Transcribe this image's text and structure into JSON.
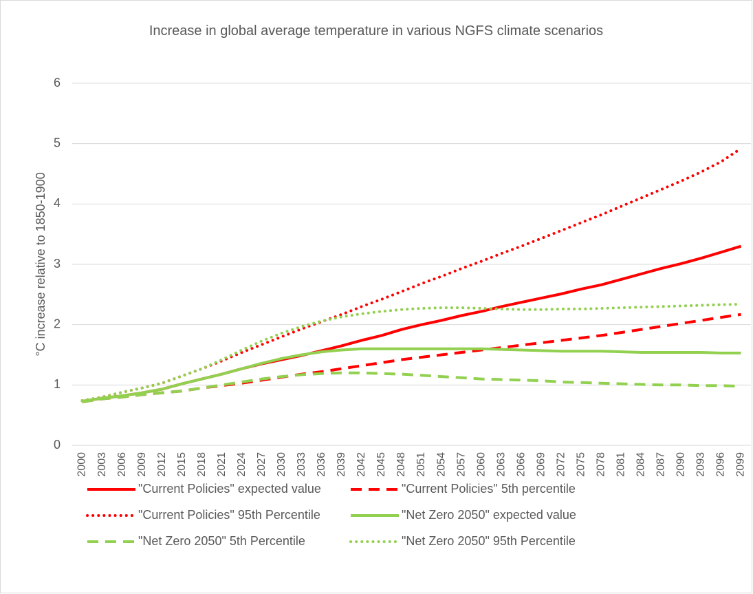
{
  "chart_data": {
    "type": "line",
    "title": "Increase in global average temperature in various NGFS climate scenarios",
    "y_label": "°C increase relative to 1850-1900",
    "categories": [
      "2000",
      "2003",
      "2006",
      "2009",
      "2012",
      "2015",
      "2018",
      "2021",
      "2024",
      "2027",
      "2030",
      "2033",
      "2036",
      "2039",
      "2042",
      "2045",
      "2048",
      "2051",
      "2054",
      "2057",
      "2060",
      "2063",
      "2066",
      "2069",
      "2072",
      "2075",
      "2078",
      "2081",
      "2084",
      "2087",
      "2090",
      "2093",
      "2096",
      "2099"
    ],
    "ylim": [
      0,
      6
    ],
    "yticks": [
      0,
      1,
      2,
      3,
      4,
      5,
      6
    ],
    "grid": true,
    "legend": "bottom",
    "series": [
      {
        "name": "\"Current Policies\" expected value",
        "color": "#ff0000",
        "style": "solid",
        "values": [
          0.73,
          0.78,
          0.82,
          0.87,
          0.93,
          1.02,
          1.1,
          1.18,
          1.27,
          1.35,
          1.42,
          1.49,
          1.57,
          1.65,
          1.74,
          1.82,
          1.92,
          2.0,
          2.07,
          2.15,
          2.22,
          2.3,
          2.37,
          2.44,
          2.51,
          2.59,
          2.66,
          2.75,
          2.84,
          2.93,
          3.01,
          3.1,
          3.2,
          3.3
        ]
      },
      {
        "name": "\"Current Policies\" 5th percentile",
        "color": "#ff0000",
        "style": "dashed",
        "values": [
          0.72,
          0.77,
          0.8,
          0.84,
          0.87,
          0.9,
          0.95,
          0.99,
          1.03,
          1.08,
          1.13,
          1.18,
          1.22,
          1.27,
          1.32,
          1.37,
          1.42,
          1.46,
          1.5,
          1.54,
          1.58,
          1.62,
          1.66,
          1.7,
          1.74,
          1.78,
          1.82,
          1.87,
          1.92,
          1.97,
          2.02,
          2.07,
          2.12,
          2.17
        ]
      },
      {
        "name": "\"Current Policies\" 95th Percentile",
        "color": "#ff0000",
        "style": "dotted",
        "values": [
          0.74,
          0.8,
          0.88,
          0.95,
          1.03,
          1.15,
          1.27,
          1.4,
          1.54,
          1.67,
          1.8,
          1.93,
          2.05,
          2.17,
          2.3,
          2.42,
          2.55,
          2.68,
          2.8,
          2.93,
          3.05,
          3.18,
          3.3,
          3.43,
          3.56,
          3.69,
          3.82,
          3.96,
          4.1,
          4.24,
          4.38,
          4.53,
          4.7,
          4.92
        ]
      },
      {
        "name": "\"Net Zero 2050\" expected value",
        "color": "#92d050",
        "style": "solid",
        "values": [
          0.73,
          0.78,
          0.82,
          0.87,
          0.93,
          1.02,
          1.1,
          1.18,
          1.27,
          1.36,
          1.44,
          1.5,
          1.55,
          1.58,
          1.6,
          1.6,
          1.6,
          1.6,
          1.6,
          1.6,
          1.6,
          1.59,
          1.58,
          1.57,
          1.56,
          1.56,
          1.56,
          1.55,
          1.54,
          1.54,
          1.54,
          1.54,
          1.53,
          1.53
        ]
      },
      {
        "name": "\"Net Zero 2050\" 5th Percentile",
        "color": "#92d050",
        "style": "dashed",
        "values": [
          0.72,
          0.77,
          0.8,
          0.84,
          0.87,
          0.9,
          0.95,
          1.0,
          1.05,
          1.1,
          1.14,
          1.17,
          1.19,
          1.2,
          1.2,
          1.19,
          1.18,
          1.16,
          1.14,
          1.12,
          1.1,
          1.09,
          1.08,
          1.07,
          1.05,
          1.04,
          1.03,
          1.02,
          1.01,
          1.0,
          1.0,
          0.99,
          0.99,
          0.98
        ]
      },
      {
        "name": "\"Net Zero 2050\" 95th Percentile",
        "color": "#92d050",
        "style": "dotted",
        "values": [
          0.74,
          0.8,
          0.88,
          0.95,
          1.03,
          1.15,
          1.27,
          1.42,
          1.58,
          1.73,
          1.86,
          1.97,
          2.06,
          2.13,
          2.18,
          2.22,
          2.25,
          2.27,
          2.28,
          2.28,
          2.27,
          2.26,
          2.25,
          2.25,
          2.26,
          2.26,
          2.27,
          2.28,
          2.29,
          2.3,
          2.31,
          2.32,
          2.33,
          2.34
        ]
      }
    ]
  }
}
